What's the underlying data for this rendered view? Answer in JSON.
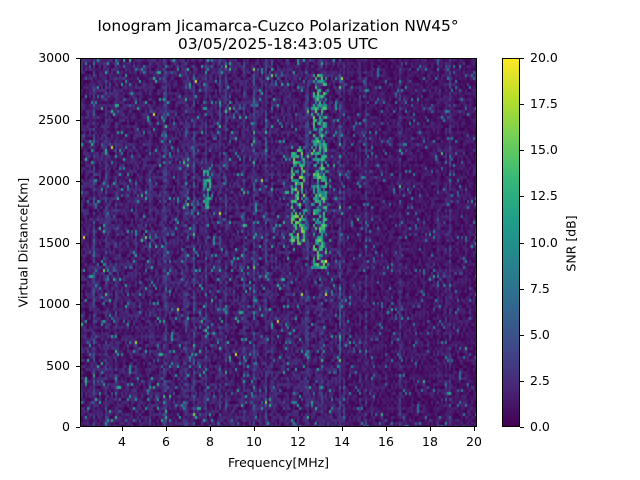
{
  "chart_data": {
    "type": "heatmap",
    "title": "Ionogram Jicamarca-Cuzco Polarization NW45°",
    "subtitle": "03/05/2025-18:43:05 UTC",
    "xlabel": "Frequency[MHz]",
    "ylabel": "Virtual Distance[Km]",
    "colorbar_label": "SNR [dB]",
    "colormap": "viridis",
    "xlim": [
      2.1,
      20.15
    ],
    "ylim": [
      0,
      3000
    ],
    "clim": [
      0.0,
      20.0
    ],
    "x_ticks": [
      4,
      6,
      8,
      10,
      12,
      14,
      16,
      18,
      20
    ],
    "x_tick_labels": [
      "4",
      "6",
      "8",
      "10",
      "12",
      "14",
      "16",
      "18",
      "20"
    ],
    "y_ticks": [
      0,
      500,
      1000,
      1500,
      2000,
      2500,
      3000
    ],
    "y_tick_labels": [
      "0",
      "500",
      "1000",
      "1500",
      "2000",
      "2500",
      "3000"
    ],
    "colorbar_ticks": [
      0.0,
      2.5,
      5.0,
      7.5,
      10.0,
      12.5,
      15.0,
      17.5,
      20.0
    ],
    "colorbar_tick_labels": [
      "0.0",
      "2.5",
      "5.0",
      "7.5",
      "10.0",
      "12.5",
      "15.0",
      "17.5",
      "20.0"
    ],
    "grid": false,
    "features": [
      {
        "description": "bright streak (echo trace)",
        "freq_range_mhz": [
          11.6,
          12.2
        ],
        "distance_range_km": [
          1500,
          2300
        ],
        "snr_db_approx": 15
      },
      {
        "description": "bright streak (echo trace)",
        "freq_range_mhz": [
          12.6,
          13.2
        ],
        "distance_range_km": [
          1300,
          2900
        ],
        "snr_db_approx": 14
      },
      {
        "description": "bright streak",
        "freq_range_mhz": [
          7.6,
          8.0
        ],
        "distance_range_km": [
          1800,
          2100
        ],
        "snr_db_approx": 13
      },
      {
        "description": "vertical interference lines",
        "freq_range_mhz": [
          2.1,
          20.15
        ],
        "distance_range_km": [
          0,
          3000
        ],
        "snr_db_approx": 5
      }
    ],
    "background_snr_db_approx": 1.5
  },
  "colors": {
    "viridis_stops": [
      "#440154",
      "#482878",
      "#3e4a89",
      "#31688e",
      "#26828e",
      "#1f9e89",
      "#35b779",
      "#6ece58",
      "#b5de2b",
      "#fde725"
    ]
  }
}
